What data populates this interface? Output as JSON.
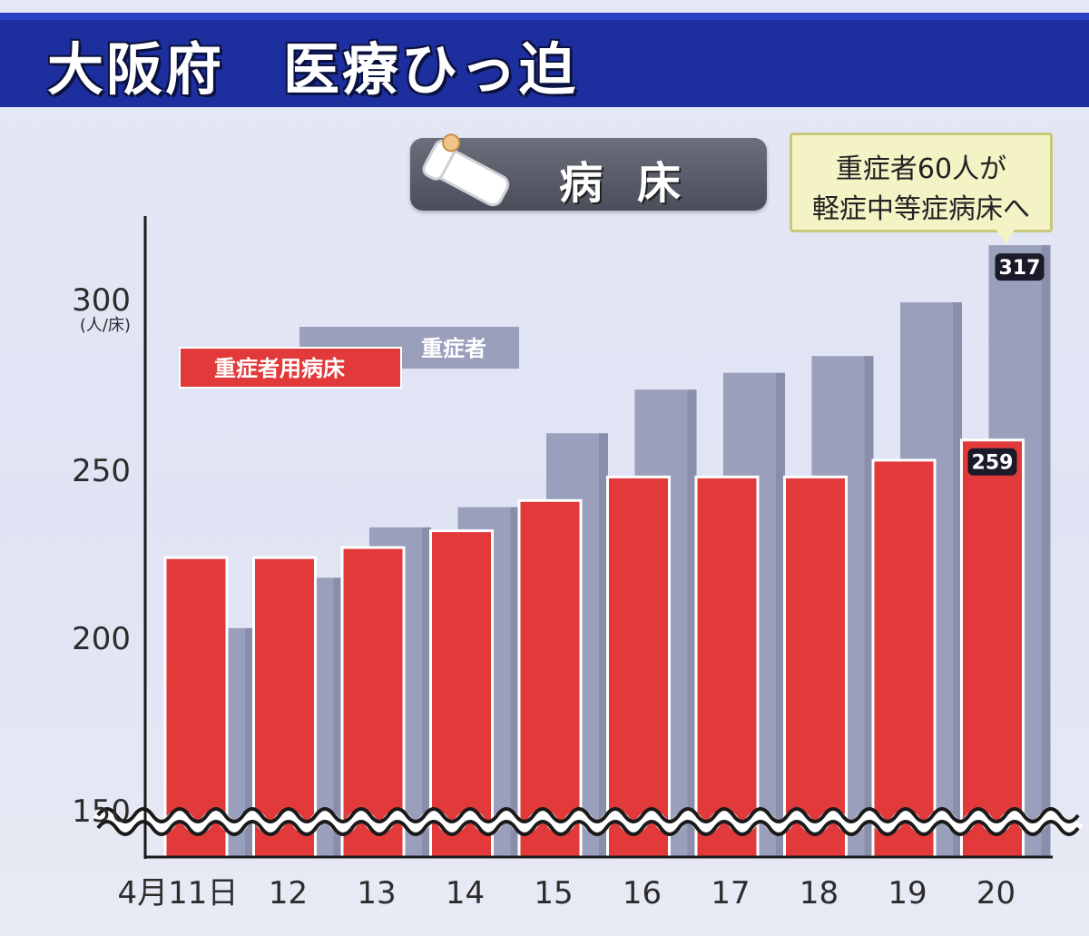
{
  "header": {
    "title": "大阪府　医療ひっ迫"
  },
  "section": {
    "label": "病床",
    "icon": "hospital-bed-icon"
  },
  "callout": {
    "line1": "重症者60人が",
    "line2": "軽症中等症病床へ"
  },
  "colors": {
    "title_band": "#1d2f9e",
    "beds_series": "#e23a3a",
    "patients_series": "#9aa0bc"
  },
  "chart_data": {
    "type": "bar",
    "title": "",
    "xlabel": "",
    "ylabel": "(人/床)",
    "ylim": [
      150,
      320
    ],
    "axis_break": true,
    "grid": false,
    "legend_placement": "top-left",
    "yticks": [
      "150",
      "200",
      "250",
      "300"
    ],
    "categories": [
      "4月11日",
      "12",
      "13",
      "14",
      "15",
      "16",
      "17",
      "18",
      "19",
      "20"
    ],
    "series": [
      {
        "name": "重症者用病床",
        "color": "#e23a3a",
        "values": [
          224,
          224,
          227,
          232,
          241,
          248,
          248,
          248,
          253,
          259
        ]
      },
      {
        "name": "重症者",
        "color": "#9aa0bc",
        "values": [
          203,
          218,
          233,
          239,
          261,
          274,
          279,
          284,
          300,
          317
        ]
      }
    ],
    "data_labels": [
      {
        "series": "重症者",
        "category": "20",
        "text": "317"
      },
      {
        "series": "重症者用病床",
        "category": "20",
        "text": "259"
      }
    ]
  }
}
